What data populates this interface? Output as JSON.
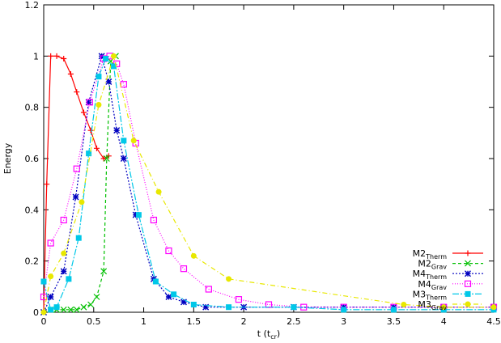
{
  "chart_data": {
    "type": "line",
    "xlabel": {
      "base": "t (t",
      "sub": "cr",
      "close": ")"
    },
    "ylabel": "Energy",
    "xlim": [
      0,
      4.5
    ],
    "ylim": [
      0,
      1.2
    ],
    "x_ticks": [
      {
        "value": 0,
        "label": "0"
      },
      {
        "value": 0.5,
        "label": "0.5"
      },
      {
        "value": 1,
        "label": "1"
      },
      {
        "value": 1.5,
        "label": "1.5"
      },
      {
        "value": 2,
        "label": "2"
      },
      {
        "value": 2.5,
        "label": "2.5"
      },
      {
        "value": 3,
        "label": "3"
      },
      {
        "value": 3.5,
        "label": "3.5"
      },
      {
        "value": 4,
        "label": "4"
      },
      {
        "value": 4.5,
        "label": "4.5"
      }
    ],
    "y_ticks": [
      {
        "value": 0,
        "label": "0"
      },
      {
        "value": 0.2,
        "label": "0.2"
      },
      {
        "value": 0.4,
        "label": "0.4"
      },
      {
        "value": 0.6,
        "label": "0.6"
      },
      {
        "value": 0.8,
        "label": "0.8"
      },
      {
        "value": 1,
        "label": "1"
      },
      {
        "value": 1.2,
        "label": "1.2"
      }
    ],
    "grid": false,
    "legend_position": "bottom-right",
    "series": [
      {
        "name": "M2",
        "sub": "Therm",
        "color": "#ff0000",
        "dash": "",
        "marker": "plus",
        "x": [
          0,
          0.03,
          0.07,
          0.13,
          0.2,
          0.27,
          0.33,
          0.4,
          0.47,
          0.53,
          0.6,
          0.65
        ],
        "y": [
          0,
          0.5,
          1.0,
          1.0,
          0.99,
          0.93,
          0.86,
          0.78,
          0.71,
          0.64,
          0.6,
          0.61
        ]
      },
      {
        "name": "M2",
        "sub": "Grav",
        "color": "#00c000",
        "dash": "4,3",
        "marker": "cross",
        "x": [
          0,
          0.07,
          0.13,
          0.2,
          0.27,
          0.33,
          0.4,
          0.47,
          0.53,
          0.6,
          0.63,
          0.67,
          0.72
        ],
        "y": [
          0,
          0.01,
          0.01,
          0.01,
          0.01,
          0.01,
          0.02,
          0.03,
          0.06,
          0.16,
          0.6,
          0.98,
          1.0
        ]
      },
      {
        "name": "M4",
        "sub": "Therm",
        "color": "#0000c0",
        "dash": "2,2",
        "marker": "star",
        "x": [
          0,
          0.07,
          0.2,
          0.32,
          0.45,
          0.58,
          0.65,
          0.73,
          0.8,
          0.92,
          1.1,
          1.25,
          1.4,
          1.62,
          2.0,
          2.5,
          3.0,
          3.5,
          4.0,
          4.5
        ],
        "y": [
          0,
          0.06,
          0.16,
          0.45,
          0.82,
          1.0,
          0.9,
          0.71,
          0.6,
          0.38,
          0.13,
          0.06,
          0.04,
          0.02,
          0.02,
          0.02,
          0.02,
          0.02,
          0.02,
          0.02
        ]
      },
      {
        "name": "M4",
        "sub": "Grav",
        "color": "#ff00ff",
        "dash": "1,2",
        "marker": "square",
        "x": [
          0,
          0.07,
          0.2,
          0.33,
          0.46,
          0.6,
          0.66,
          0.73,
          0.8,
          0.92,
          1.1,
          1.25,
          1.4,
          1.65,
          1.95,
          2.25,
          2.6,
          3.0,
          3.5,
          4.0,
          4.5
        ],
        "y": [
          0.06,
          0.27,
          0.36,
          0.56,
          0.82,
          0.99,
          1.0,
          0.97,
          0.89,
          0.66,
          0.36,
          0.24,
          0.17,
          0.09,
          0.05,
          0.03,
          0.02,
          0.02,
          0.02,
          0.02,
          0.02
        ]
      },
      {
        "name": "M3",
        "sub": "Therm",
        "color": "#00c8e8",
        "dash": "8,2,2,2",
        "marker": "filled-square",
        "x": [
          0,
          0.07,
          0.13,
          0.25,
          0.35,
          0.45,
          0.55,
          0.62,
          0.7,
          0.8,
          0.95,
          1.12,
          1.3,
          1.5,
          1.85,
          2.5,
          3.0,
          3.5,
          4.0,
          4.5
        ],
        "y": [
          0.12,
          0.01,
          0.02,
          0.13,
          0.29,
          0.62,
          0.92,
          0.99,
          0.96,
          0.67,
          0.38,
          0.12,
          0.07,
          0.03,
          0.02,
          0.02,
          0.01,
          0.01,
          0.01,
          0.01
        ]
      },
      {
        "name": "M3",
        "sub": "Grav",
        "color": "#e8e800",
        "dash": "6,3,1,3",
        "marker": "circle",
        "x": [
          0,
          0.07,
          0.2,
          0.38,
          0.55,
          0.7,
          0.9,
          1.15,
          1.5,
          1.85,
          3.6,
          4.0,
          4.5
        ],
        "y": [
          0,
          0.14,
          0.23,
          0.43,
          0.81,
          1.0,
          0.67,
          0.47,
          0.22,
          0.13,
          0.03,
          0.02,
          0.02
        ]
      }
    ]
  }
}
